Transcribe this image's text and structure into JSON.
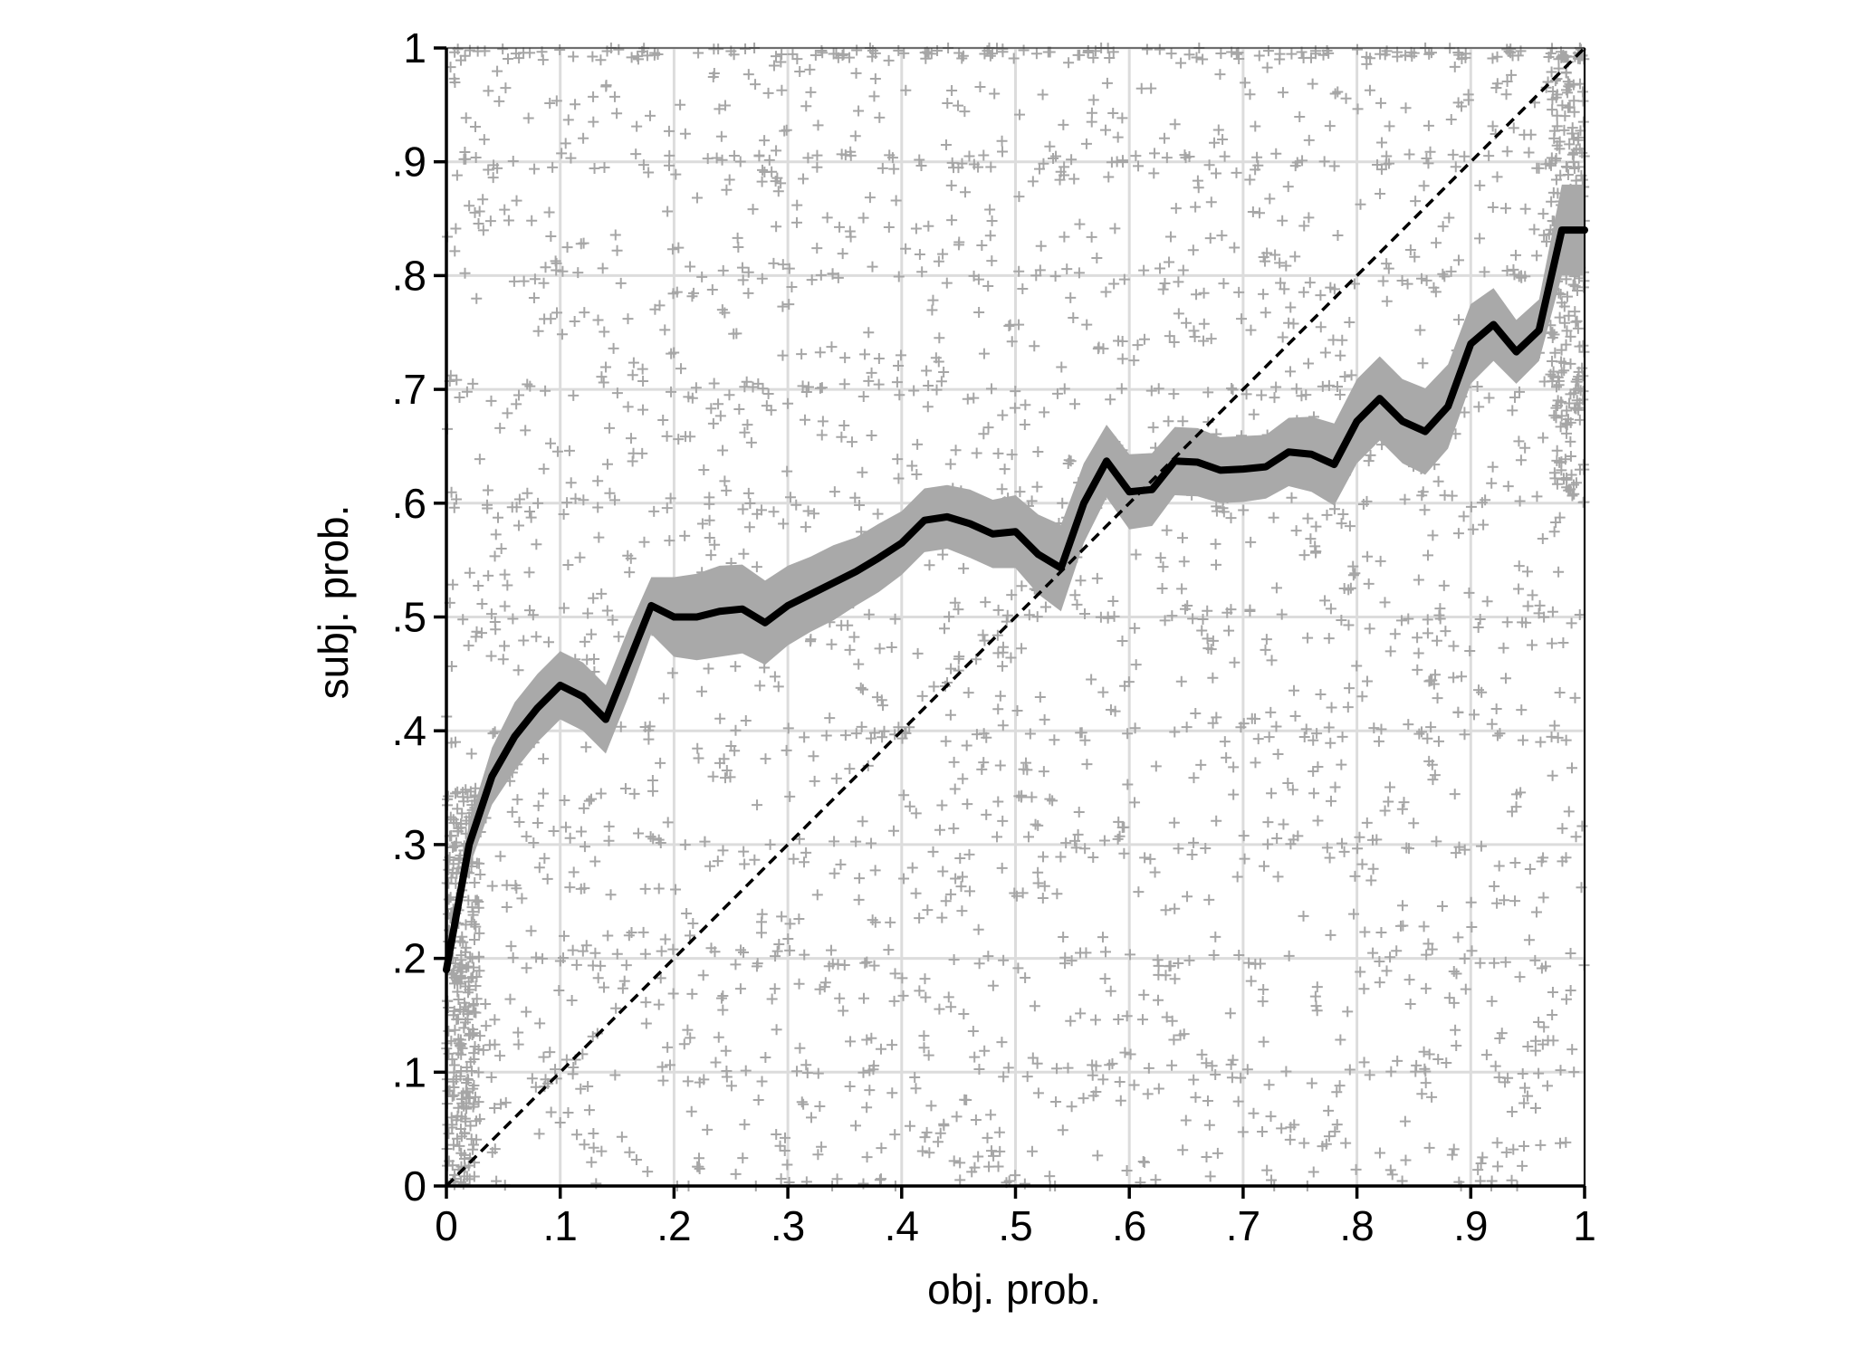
{
  "chart_data": {
    "type": "line",
    "xlabel": "obj. prob.",
    "ylabel": "subj. prob.",
    "xlim": [
      0,
      1
    ],
    "ylim": [
      0,
      1
    ],
    "grid": true,
    "x_ticks": [
      0,
      0.1,
      0.2,
      0.3,
      0.4,
      0.5,
      0.6,
      0.7,
      0.8,
      0.9,
      1
    ],
    "x_tick_labels": [
      "0",
      ".1",
      ".2",
      ".3",
      ".4",
      ".5",
      ".6",
      ".7",
      ".8",
      ".9",
      "1"
    ],
    "y_ticks": [
      0,
      0.1,
      0.2,
      0.3,
      0.4,
      0.5,
      0.6,
      0.7,
      0.8,
      0.9,
      1
    ],
    "y_tick_labels": [
      "0",
      ".1",
      ".2",
      ".3",
      ".4",
      ".5",
      ".6",
      ".7",
      ".8",
      ".9",
      "1"
    ],
    "colors": {
      "scatter": "#a6a6a6",
      "band": "#a9a9a9",
      "line": "#000000",
      "grid": "#dcdcdc",
      "diagonal": "#000000"
    },
    "series": [
      {
        "kind": "smoothed-line",
        "x": [
          0,
          0.02,
          0.04,
          0.06,
          0.08,
          0.1,
          0.12,
          0.14,
          0.16,
          0.18,
          0.2,
          0.22,
          0.24,
          0.26,
          0.28,
          0.3,
          0.32,
          0.34,
          0.36,
          0.38,
          0.4,
          0.42,
          0.44,
          0.46,
          0.48,
          0.5,
          0.52,
          0.54,
          0.56,
          0.58,
          0.6,
          0.62,
          0.64,
          0.66,
          0.68,
          0.7,
          0.72,
          0.74,
          0.76,
          0.78,
          0.8,
          0.82,
          0.84,
          0.86,
          0.88,
          0.9,
          0.92,
          0.94,
          0.96,
          0.98,
          1.0
        ],
        "y": [
          0.19,
          0.3,
          0.36,
          0.395,
          0.42,
          0.44,
          0.43,
          0.41,
          0.46,
          0.51,
          0.5,
          0.5,
          0.505,
          0.507,
          0.495,
          0.51,
          0.52,
          0.53,
          0.54,
          0.552,
          0.565,
          0.585,
          0.588,
          0.582,
          0.573,
          0.575,
          0.555,
          0.543,
          0.6,
          0.637,
          0.61,
          0.612,
          0.637,
          0.636,
          0.629,
          0.63,
          0.632,
          0.645,
          0.643,
          0.634,
          0.672,
          0.692,
          0.672,
          0.663,
          0.685,
          0.74,
          0.757,
          0.733,
          0.752,
          0.84,
          0.84
        ],
        "ci_lower": [
          0.19,
          0.28,
          0.335,
          0.365,
          0.39,
          0.41,
          0.4,
          0.38,
          0.43,
          0.485,
          0.465,
          0.462,
          0.465,
          0.468,
          0.458,
          0.475,
          0.487,
          0.497,
          0.51,
          0.522,
          0.537,
          0.557,
          0.56,
          0.552,
          0.543,
          0.543,
          0.52,
          0.505,
          0.565,
          0.605,
          0.577,
          0.58,
          0.607,
          0.606,
          0.6,
          0.601,
          0.604,
          0.615,
          0.61,
          0.598,
          0.635,
          0.655,
          0.635,
          0.625,
          0.648,
          0.705,
          0.725,
          0.705,
          0.725,
          0.8,
          0.8
        ],
        "ci_upper": [
          0.19,
          0.32,
          0.385,
          0.425,
          0.45,
          0.47,
          0.46,
          0.44,
          0.49,
          0.535,
          0.535,
          0.538,
          0.545,
          0.546,
          0.532,
          0.545,
          0.553,
          0.563,
          0.57,
          0.582,
          0.593,
          0.613,
          0.616,
          0.612,
          0.603,
          0.607,
          0.59,
          0.581,
          0.635,
          0.669,
          0.643,
          0.644,
          0.667,
          0.666,
          0.658,
          0.659,
          0.66,
          0.675,
          0.676,
          0.67,
          0.709,
          0.729,
          0.709,
          0.701,
          0.722,
          0.775,
          0.789,
          0.761,
          0.779,
          0.88,
          0.88
        ]
      },
      {
        "kind": "reference-diagonal",
        "x": [
          0,
          1
        ],
        "y": [
          0,
          1
        ]
      }
    ]
  }
}
